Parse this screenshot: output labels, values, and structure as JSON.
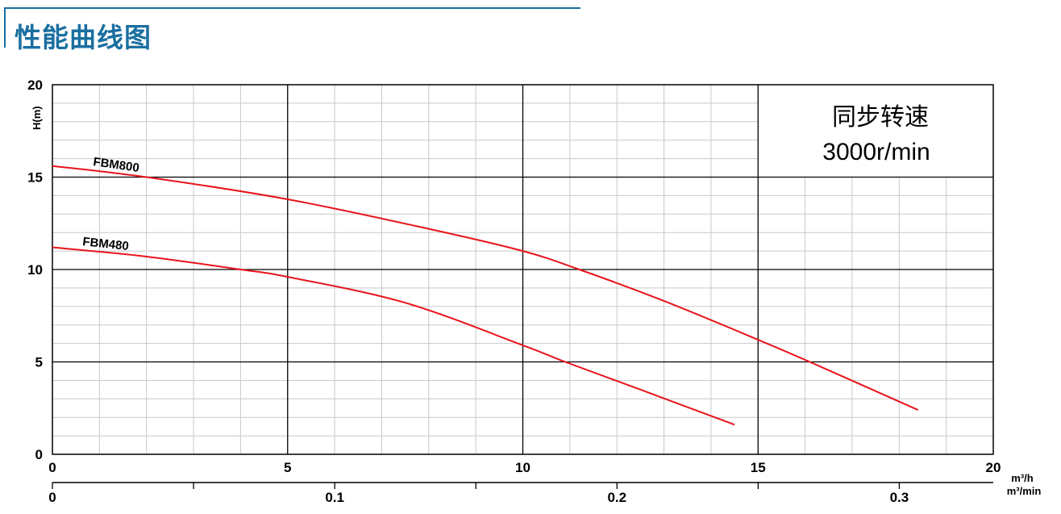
{
  "header": {
    "title": "性能曲线图",
    "accent_color": "#1a6fa0"
  },
  "chart_data": {
    "type": "line",
    "title": "",
    "xlabel": "m³/h",
    "ylabel": "H(m)",
    "secondary_xlabel": "m³/min",
    "xlim": [
      0,
      20
    ],
    "ylim": [
      0,
      20
    ],
    "secondary_xlim": [
      0,
      0.3333
    ],
    "x_ticks": [
      "0",
      "5",
      "10",
      "15",
      "20"
    ],
    "y_ticks": [
      "0",
      "5",
      "10",
      "15",
      "20"
    ],
    "secondary_x_ticks": [
      "0",
      "0.1",
      "0.2",
      "0.3"
    ],
    "grid": true,
    "annotation": {
      "line1": "同步转速",
      "line2": "3000r/min"
    },
    "series_color": "#e8141b",
    "series": [
      {
        "name": "FBM800",
        "x": [
          0,
          2,
          5,
          8,
          10,
          11.2,
          13,
          15,
          16.1,
          18.4
        ],
        "y": [
          15.6,
          15.0,
          13.8,
          12.2,
          11.0,
          10.0,
          8.3,
          6.2,
          5.0,
          2.4
        ]
      },
      {
        "name": "FBM480",
        "x": [
          0,
          2,
          4,
          5,
          7.5,
          10,
          10.9,
          12.5,
          14.5
        ],
        "y": [
          11.2,
          10.7,
          10.0,
          9.6,
          8.2,
          5.9,
          5.0,
          3.5,
          1.6
        ]
      }
    ]
  }
}
